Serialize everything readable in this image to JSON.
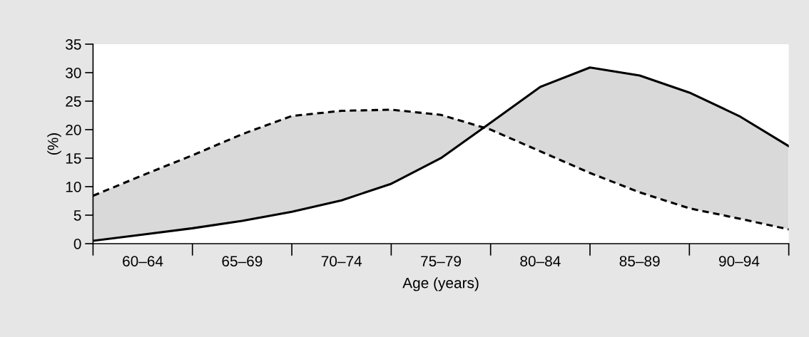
{
  "chart_data": {
    "type": "line",
    "xlabel": "Age (years)",
    "ylabel": "(%)",
    "categories": [
      null,
      "60–64",
      null,
      "65–69",
      null,
      "70–74",
      null,
      "75–79",
      null,
      "80–84",
      null,
      "85–89",
      null,
      "90–94",
      null
    ],
    "ylim": [
      0,
      35
    ],
    "yticks": [
      0,
      5,
      10,
      15,
      20,
      25,
      30,
      35
    ],
    "grid": false,
    "marker": "none",
    "series": [
      {
        "color": "#000000",
        "line_style": "dashed",
        "values": [
          8.4,
          12,
          15.5,
          19.2,
          22.4,
          23.3,
          23.5,
          22.6,
          20,
          16.2,
          12.4,
          9,
          6.2,
          4.4,
          2.5
        ]
      },
      {
        "color": "#000000",
        "line_style": "solid",
        "values": [
          0.5,
          1.6,
          2.7,
          4,
          5.6,
          7.6,
          10.5,
          15,
          21.2,
          27.5,
          30.9,
          29.5,
          26.5,
          22.4,
          17.1
        ],
        "lower": [
          8.4,
          12,
          15.5,
          19.2,
          22.4,
          23.3,
          23.5,
          22.6,
          20,
          16.2,
          12.4,
          9,
          6.2,
          4.4,
          2.5
        ],
        "upper": [
          0.5,
          1.6,
          2.7,
          4,
          5.6,
          7.6,
          10.5,
          15,
          21.2,
          27.5,
          30.9,
          29.5,
          26.5,
          22.4,
          17.1
        ]
      }
    ]
  }
}
